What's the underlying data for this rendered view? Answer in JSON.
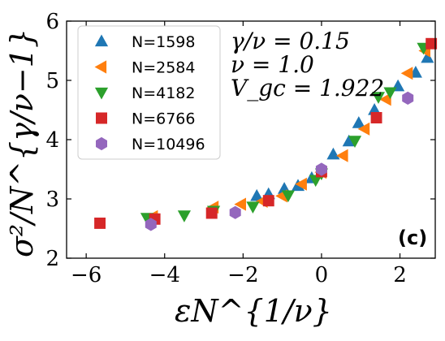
{
  "chart_data": {
    "type": "scatter",
    "xlabel": "εN^{1/ν}",
    "ylabel": "σ²/N^{γ/ν−1}",
    "xlim": [
      -6.5,
      2.9
    ],
    "ylim": [
      2,
      6
    ],
    "xticks": [
      -6,
      -4,
      -2,
      0,
      2
    ],
    "yticks": [
      2,
      3,
      4,
      5,
      6
    ],
    "xtick_labels": [
      "−6",
      "−4",
      "−2",
      "0",
      "2"
    ],
    "ytick_labels": [
      "2",
      "3",
      "4",
      "5",
      "6"
    ],
    "grid": false,
    "legend_position": "top-left",
    "panel_label": "(c)",
    "parameters": [
      "γ/ν = 0.15",
      "ν = 1.0",
      "V_gc = 1.922"
    ],
    "colors": {
      "N=1598": "#1f77b4",
      "N=2584": "#ff7f0e",
      "N=4182": "#2ca02c",
      "N=6766": "#d62728",
      "N=10496": "#9467bd"
    },
    "series": [
      {
        "name": "N=1598",
        "marker": "triangle-up",
        "x": [
          -1.65,
          -1.35,
          -0.95,
          -0.6,
          -0.25,
          0.3,
          0.7,
          0.95,
          1.35,
          1.95,
          2.4,
          2.7
        ],
        "y": [
          3.05,
          3.08,
          3.17,
          3.22,
          3.35,
          3.75,
          3.97,
          4.28,
          4.5,
          4.9,
          5.13,
          5.38
        ]
      },
      {
        "name": "N=2584",
        "marker": "triangle-left",
        "x": [
          -4.3,
          -2.75,
          -2.05,
          -1.5,
          -1.0,
          -0.5,
          0.0,
          0.55,
          1.1,
          1.65,
          2.2,
          2.65
        ],
        "y": [
          2.7,
          2.86,
          2.91,
          2.96,
          3.05,
          3.25,
          3.45,
          3.73,
          4.18,
          4.68,
          5.12,
          5.5
        ]
      },
      {
        "name": "N=4182",
        "marker": "triangle-down",
        "x": [
          -4.45,
          -3.5,
          -2.75,
          -1.75,
          -0.85,
          -0.15,
          0.0,
          0.85,
          1.45,
          1.75,
          2.6
        ],
        "y": [
          2.68,
          2.72,
          2.8,
          2.87,
          3.06,
          3.32,
          3.43,
          3.98,
          4.72,
          4.8,
          5.55
        ]
      },
      {
        "name": "N=6766",
        "marker": "square",
        "x": [
          -5.65,
          -4.25,
          -2.8,
          -1.35,
          0.0,
          1.4,
          2.8
        ],
        "y": [
          2.59,
          2.66,
          2.76,
          2.97,
          3.46,
          4.37,
          5.62
        ]
      },
      {
        "name": "N=10496",
        "marker": "hexagon",
        "x": [
          -4.35,
          -2.2,
          0.0,
          2.2
        ],
        "y": [
          2.57,
          2.77,
          3.5,
          4.7
        ]
      }
    ]
  }
}
